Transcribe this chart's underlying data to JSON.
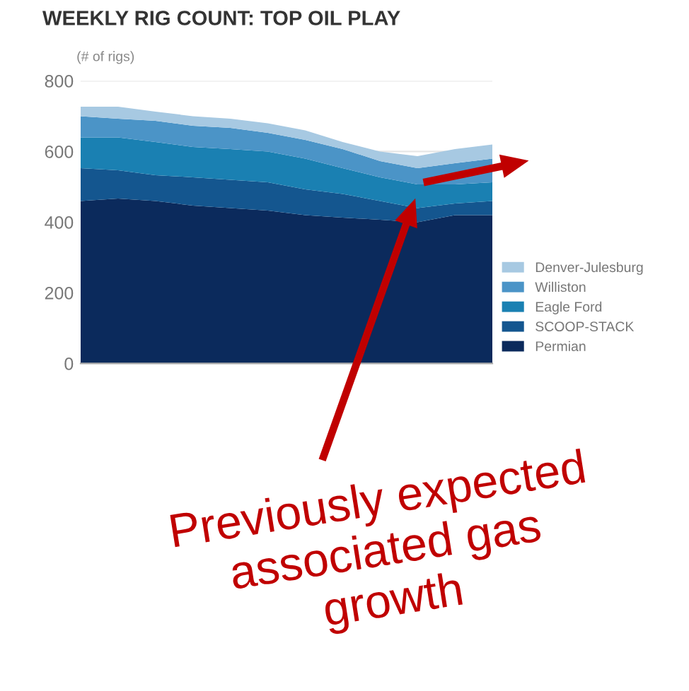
{
  "chart_data": {
    "type": "area",
    "stacked": true,
    "title": "WEEKLY RIG COUNT: TOP OIL PLAY",
    "ylabel": "(# of rigs)",
    "categories": [
      null,
      null,
      null,
      null,
      null,
      null,
      null,
      null,
      null,
      null,
      null,
      null
    ],
    "series": [
      {
        "name": "Permian",
        "color": "#0b2a5c",
        "values": [
          460,
          467,
          460,
          447,
          440,
          433,
          420,
          413,
          407,
          400,
          420,
          420
        ]
      },
      {
        "name": "SCOOP-STACK",
        "color": "#14568f",
        "values": [
          93,
          80,
          73,
          80,
          80,
          80,
          73,
          67,
          53,
          40,
          33,
          40
        ]
      },
      {
        "name": "Eagle Ford",
        "color": "#1a80b2",
        "values": [
          87,
          93,
          94,
          86,
          87,
          87,
          87,
          73,
          67,
          67,
          54,
          53
        ]
      },
      {
        "name": "Williston",
        "color": "#4b94c7",
        "values": [
          60,
          53,
          60,
          60,
          60,
          53,
          53,
          54,
          46,
          46,
          60,
          67
        ]
      },
      {
        "name": "Denver-Julesburg",
        "color": "#a7c9e2",
        "values": [
          27,
          34,
          26,
          27,
          26,
          27,
          27,
          20,
          27,
          34,
          40,
          40
        ]
      }
    ],
    "ylim": [
      0,
      800
    ],
    "yticks": [
      0,
      200,
      400,
      600,
      800
    ],
    "grid": "y",
    "legend": "bottom right",
    "annotations": [
      "Previously expected associated gas growth"
    ]
  }
}
